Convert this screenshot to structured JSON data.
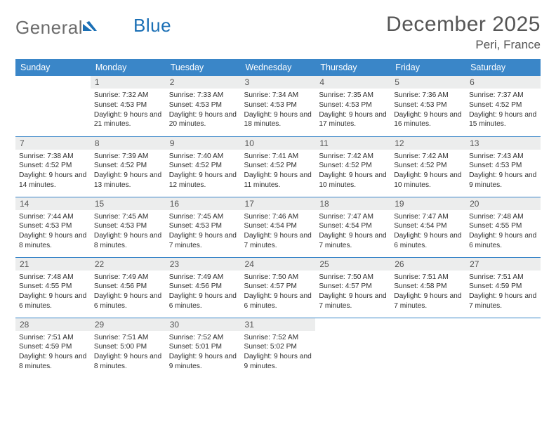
{
  "brand": {
    "word1": "General",
    "word2": "Blue",
    "gray_color": "#6d6d6d",
    "blue_color": "#1a6fb5",
    "mark_color": "#1a6fb5"
  },
  "header": {
    "month_title": "December 2025",
    "location": "Peri, France",
    "title_color": "#555555",
    "title_fontsize": 30,
    "location_fontsize": 17
  },
  "calendar": {
    "header_bg": "#3a86c8",
    "header_fg": "#ffffff",
    "daynum_bg": "#eceded",
    "border_color": "#3a86c8",
    "text_color": "#2f2f2f",
    "cell_fontsize": 10.2,
    "day_names": [
      "Sunday",
      "Monday",
      "Tuesday",
      "Wednesday",
      "Thursday",
      "Friday",
      "Saturday"
    ],
    "weeks": [
      [
        null,
        {
          "n": "1",
          "sr": "7:32 AM",
          "ss": "4:53 PM",
          "dl": "9 hours and 21 minutes."
        },
        {
          "n": "2",
          "sr": "7:33 AM",
          "ss": "4:53 PM",
          "dl": "9 hours and 20 minutes."
        },
        {
          "n": "3",
          "sr": "7:34 AM",
          "ss": "4:53 PM",
          "dl": "9 hours and 18 minutes."
        },
        {
          "n": "4",
          "sr": "7:35 AM",
          "ss": "4:53 PM",
          "dl": "9 hours and 17 minutes."
        },
        {
          "n": "5",
          "sr": "7:36 AM",
          "ss": "4:53 PM",
          "dl": "9 hours and 16 minutes."
        },
        {
          "n": "6",
          "sr": "7:37 AM",
          "ss": "4:52 PM",
          "dl": "9 hours and 15 minutes."
        }
      ],
      [
        {
          "n": "7",
          "sr": "7:38 AM",
          "ss": "4:52 PM",
          "dl": "9 hours and 14 minutes."
        },
        {
          "n": "8",
          "sr": "7:39 AM",
          "ss": "4:52 PM",
          "dl": "9 hours and 13 minutes."
        },
        {
          "n": "9",
          "sr": "7:40 AM",
          "ss": "4:52 PM",
          "dl": "9 hours and 12 minutes."
        },
        {
          "n": "10",
          "sr": "7:41 AM",
          "ss": "4:52 PM",
          "dl": "9 hours and 11 minutes."
        },
        {
          "n": "11",
          "sr": "7:42 AM",
          "ss": "4:52 PM",
          "dl": "9 hours and 10 minutes."
        },
        {
          "n": "12",
          "sr": "7:42 AM",
          "ss": "4:52 PM",
          "dl": "9 hours and 10 minutes."
        },
        {
          "n": "13",
          "sr": "7:43 AM",
          "ss": "4:53 PM",
          "dl": "9 hours and 9 minutes."
        }
      ],
      [
        {
          "n": "14",
          "sr": "7:44 AM",
          "ss": "4:53 PM",
          "dl": "9 hours and 8 minutes."
        },
        {
          "n": "15",
          "sr": "7:45 AM",
          "ss": "4:53 PM",
          "dl": "9 hours and 8 minutes."
        },
        {
          "n": "16",
          "sr": "7:45 AM",
          "ss": "4:53 PM",
          "dl": "9 hours and 7 minutes."
        },
        {
          "n": "17",
          "sr": "7:46 AM",
          "ss": "4:54 PM",
          "dl": "9 hours and 7 minutes."
        },
        {
          "n": "18",
          "sr": "7:47 AM",
          "ss": "4:54 PM",
          "dl": "9 hours and 7 minutes."
        },
        {
          "n": "19",
          "sr": "7:47 AM",
          "ss": "4:54 PM",
          "dl": "9 hours and 6 minutes."
        },
        {
          "n": "20",
          "sr": "7:48 AM",
          "ss": "4:55 PM",
          "dl": "9 hours and 6 minutes."
        }
      ],
      [
        {
          "n": "21",
          "sr": "7:48 AM",
          "ss": "4:55 PM",
          "dl": "9 hours and 6 minutes."
        },
        {
          "n": "22",
          "sr": "7:49 AM",
          "ss": "4:56 PM",
          "dl": "9 hours and 6 minutes."
        },
        {
          "n": "23",
          "sr": "7:49 AM",
          "ss": "4:56 PM",
          "dl": "9 hours and 6 minutes."
        },
        {
          "n": "24",
          "sr": "7:50 AM",
          "ss": "4:57 PM",
          "dl": "9 hours and 6 minutes."
        },
        {
          "n": "25",
          "sr": "7:50 AM",
          "ss": "4:57 PM",
          "dl": "9 hours and 7 minutes."
        },
        {
          "n": "26",
          "sr": "7:51 AM",
          "ss": "4:58 PM",
          "dl": "9 hours and 7 minutes."
        },
        {
          "n": "27",
          "sr": "7:51 AM",
          "ss": "4:59 PM",
          "dl": "9 hours and 7 minutes."
        }
      ],
      [
        {
          "n": "28",
          "sr": "7:51 AM",
          "ss": "4:59 PM",
          "dl": "9 hours and 8 minutes."
        },
        {
          "n": "29",
          "sr": "7:51 AM",
          "ss": "5:00 PM",
          "dl": "9 hours and 8 minutes."
        },
        {
          "n": "30",
          "sr": "7:52 AM",
          "ss": "5:01 PM",
          "dl": "9 hours and 9 minutes."
        },
        {
          "n": "31",
          "sr": "7:52 AM",
          "ss": "5:02 PM",
          "dl": "9 hours and 9 minutes."
        },
        null,
        null,
        null
      ]
    ],
    "labels": {
      "sunrise": "Sunrise:",
      "sunset": "Sunset:",
      "daylight": "Daylight:"
    }
  }
}
